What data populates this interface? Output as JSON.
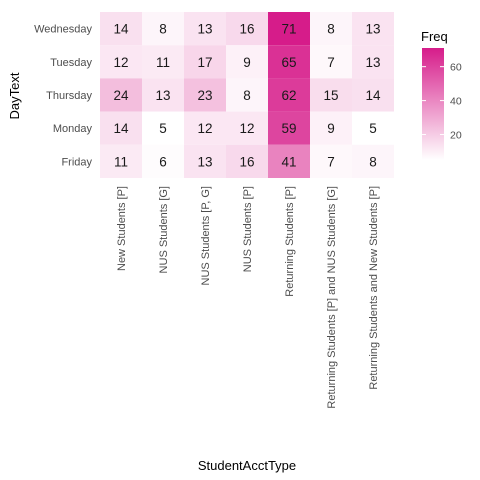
{
  "chart_data": {
    "type": "heatmap",
    "title": "",
    "xlabel": "StudentAcctType",
    "ylabel": "DayText",
    "x_categories": [
      "New Students [P]",
      "NUS Students [G]",
      "NUS Students [P, G]",
      "NUS Students [P]",
      "Returning Students [P]",
      "Returning Students [P] and NUS Students [G]",
      "Returning Students and New Students [P]"
    ],
    "y_categories": [
      "Wednesday",
      "Tuesday",
      "Thursday",
      "Monday",
      "Friday"
    ],
    "values": [
      [
        14,
        8,
        13,
        16,
        71,
        8,
        13
      ],
      [
        12,
        11,
        17,
        9,
        65,
        7,
        13
      ],
      [
        24,
        13,
        23,
        8,
        62,
        15,
        14
      ],
      [
        14,
        5,
        12,
        12,
        59,
        9,
        5
      ],
      [
        11,
        6,
        13,
        16,
        41,
        7,
        8
      ]
    ],
    "legend": {
      "title": "Freq",
      "ticks": [
        20,
        40,
        60
      ],
      "min": 5,
      "max": 71,
      "low_color": "#ffffff",
      "high_color": "#d61c8a"
    }
  }
}
